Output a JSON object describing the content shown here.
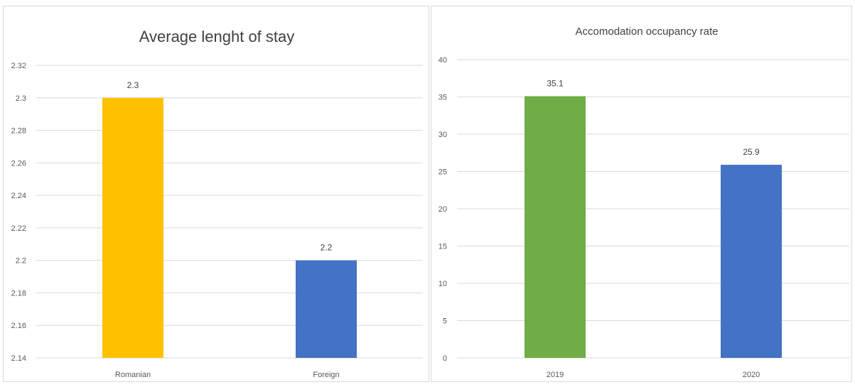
{
  "chart_data": [
    {
      "type": "bar",
      "title": "Average lenght of stay",
      "categories": [
        "Romanian",
        "Foreign"
      ],
      "values": [
        2.3,
        2.2
      ],
      "data_labels": [
        "2.3",
        "2.2"
      ],
      "colors": [
        "#FFC000",
        "#4472C4"
      ],
      "ylim": [
        2.14,
        2.32
      ],
      "yticks": [
        "2.14",
        "2.16",
        "2.18",
        "2.2",
        "2.22",
        "2.24",
        "2.26",
        "2.28",
        "2.3",
        "2.32"
      ],
      "grid": true,
      "xlabel": "",
      "ylabel": ""
    },
    {
      "type": "bar",
      "title": "Accomodation occupancy rate",
      "categories": [
        "2019",
        "2020"
      ],
      "values": [
        35.1,
        25.9
      ],
      "data_labels": [
        "35.1",
        "25.9"
      ],
      "colors": [
        "#70AD47",
        "#4472C4"
      ],
      "ylim": [
        0,
        40
      ],
      "yticks": [
        "0",
        "5",
        "10",
        "15",
        "20",
        "25",
        "30",
        "35",
        "40"
      ],
      "grid": true,
      "xlabel": "",
      "ylabel": ""
    }
  ]
}
